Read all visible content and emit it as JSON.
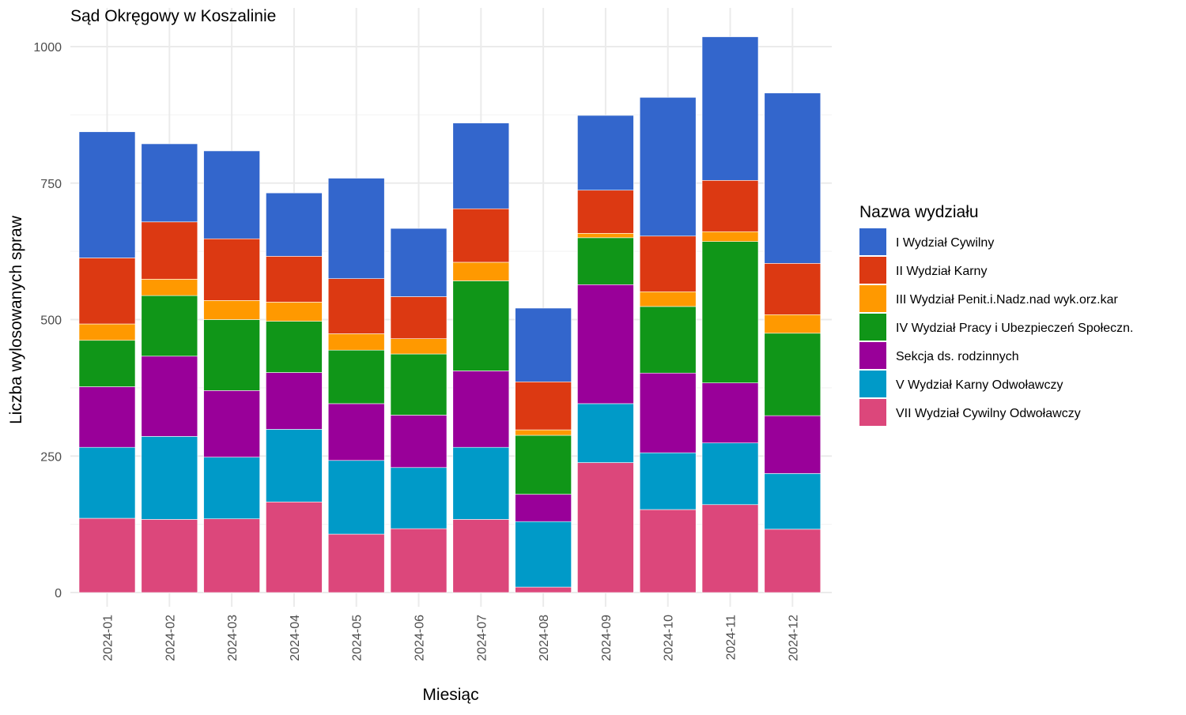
{
  "chart_data": {
    "type": "bar",
    "stacked": true,
    "title": "Sąd Okręgowy w Koszalinie",
    "xlabel": "Miesiąc",
    "ylabel": "Liczba wylosowanych spraw",
    "ylim": [
      0,
      1050
    ],
    "yticks": [
      0,
      250,
      500,
      750,
      1000
    ],
    "grid": true,
    "legend_title": "Nazwa wydziału",
    "legend_position": "right",
    "categories": [
      "2024-01",
      "2024-02",
      "2024-03",
      "2024-04",
      "2024-05",
      "2024-06",
      "2024-07",
      "2024-08",
      "2024-09",
      "2024-10",
      "2024-11",
      "2024-12"
    ],
    "series": [
      {
        "name": "VII Wydział Cywilny Odwoławczy",
        "color": "#dc477b",
        "values": [
          136,
          134,
          135,
          166,
          107,
          117,
          134,
          10,
          238,
          152,
          161,
          116
        ]
      },
      {
        "name": "V Wydział Karny Odwoławczy",
        "color": "#009ac8",
        "values": [
          130,
          152,
          113,
          133,
          135,
          112,
          132,
          120,
          108,
          104,
          113,
          102
        ]
      },
      {
        "name": "Sekcja ds. rodzinnych",
        "color": "#990099",
        "values": [
          111,
          147,
          122,
          104,
          104,
          96,
          140,
          50,
          218,
          146,
          110,
          106
        ]
      },
      {
        "name": "IV Wydział Pracy i Ubezpieczeń Społeczn.",
        "color": "#109618",
        "values": [
          85,
          111,
          130,
          94,
          98,
          112,
          165,
          108,
          86,
          122,
          259,
          151
        ]
      },
      {
        "name": "III Wydział Penit.i.Nadz.nad wyk.orz.kar",
        "color": "#ff9900",
        "values": [
          30,
          30,
          35,
          35,
          30,
          28,
          34,
          10,
          8,
          27,
          18,
          34
        ]
      },
      {
        "name": "II Wydział Karny",
        "color": "#dc3912",
        "values": [
          121,
          105,
          113,
          84,
          101,
          77,
          98,
          88,
          79,
          102,
          94,
          94
        ]
      },
      {
        "name": "I Wydział Cywilny",
        "color": "#3366cc",
        "values": [
          231,
          143,
          161,
          116,
          184,
          125,
          157,
          135,
          137,
          254,
          263,
          312
        ]
      }
    ],
    "legend_order": [
      "I Wydział Cywilny",
      "II Wydział Karny",
      "III Wydział Penit.i.Nadz.nad wyk.orz.kar",
      "IV Wydział Pracy i Ubezpieczeń Społeczn.",
      "Sekcja ds. rodzinnych",
      "V Wydział Karny Odwoławczy",
      "VII Wydział Cywilny Odwoławczy"
    ]
  }
}
